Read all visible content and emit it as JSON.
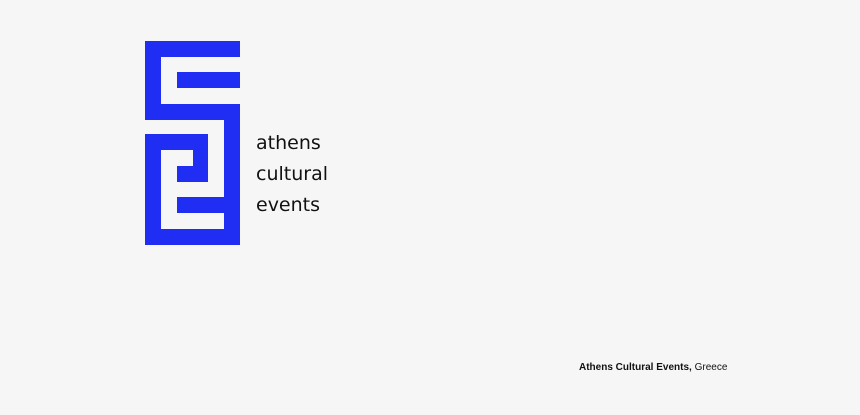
{
  "logo": {
    "lines": [
      "athens",
      "cultural",
      "events"
    ]
  },
  "caption": {
    "name": "Athens Cultural Events,",
    "place": "Greece"
  }
}
